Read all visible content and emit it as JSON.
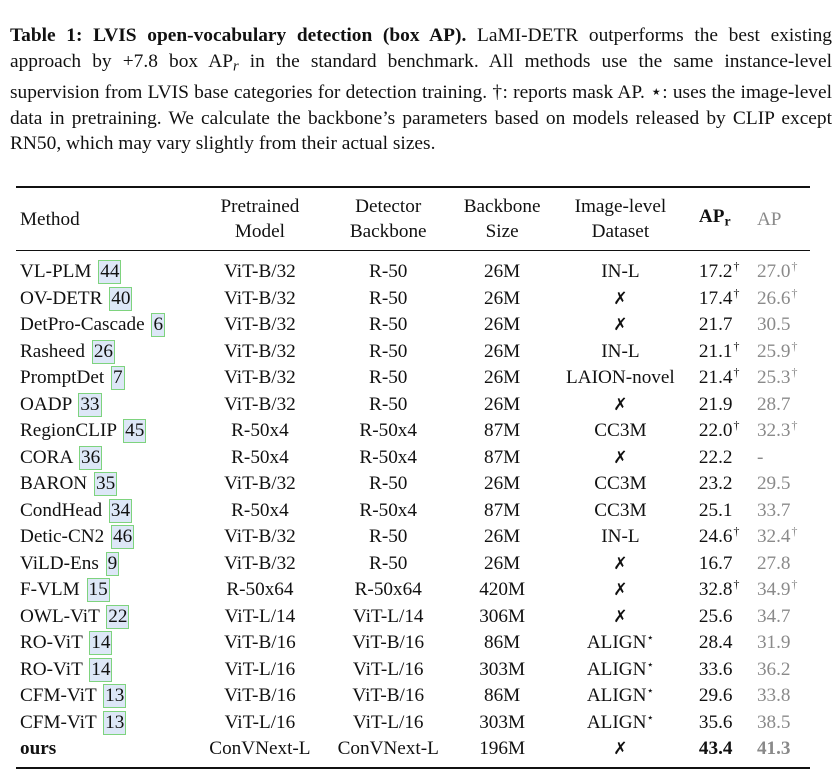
{
  "caption": {
    "label": "Table 1: LVIS open-vocabulary detection (box AP).",
    "text_part1": "LaMI-DETR outperforms the best existing approach by +7.8 box AP",
    "text_sub": "r",
    "text_part2": " in the standard benchmark. All methods use the same instance-level supervision from LVIS base categories for detection training. †: reports mask AP. ⋆: uses the image-level data in pretraining. We calculate the backbone’s parameters based on models released by CLIP except RN50, which may vary slightly from their actual sizes."
  },
  "table": {
    "headers": {
      "method": "Method",
      "pretrained_line1": "Pretrained",
      "pretrained_line2": "Model",
      "detector_line1": "Detector",
      "detector_line2": "Backbone",
      "size_line1": "Backbone",
      "size_line2": "Size",
      "dataset_line1": "Image-level",
      "dataset_line2": "Dataset",
      "apr_main": "AP",
      "apr_sub": "r",
      "ap": "AP"
    },
    "rows": [
      {
        "method": "VL-PLM",
        "ref": "44",
        "pretrained": "ViT-B/32",
        "detector": "R-50",
        "size": "26M",
        "dataset": "IN-L",
        "apr": "17.2",
        "apr_mark": "†",
        "ap": "27.0",
        "ap_mark": "†"
      },
      {
        "method": "OV-DETR",
        "ref": "40",
        "pretrained": "ViT-B/32",
        "detector": "R-50",
        "size": "26M",
        "dataset": "✗",
        "apr": "17.4",
        "apr_mark": "†",
        "ap": "26.6",
        "ap_mark": "†"
      },
      {
        "method": "DetPro-Cascade",
        "ref": "6",
        "pretrained": "ViT-B/32",
        "detector": "R-50",
        "size": "26M",
        "dataset": "✗",
        "apr": "21.7",
        "apr_mark": "",
        "ap": "30.5",
        "ap_mark": ""
      },
      {
        "method": "Rasheed",
        "ref": "26",
        "pretrained": "ViT-B/32",
        "detector": "R-50",
        "size": "26M",
        "dataset": "IN-L",
        "apr": "21.1",
        "apr_mark": "†",
        "ap": "25.9",
        "ap_mark": "†"
      },
      {
        "method": "PromptDet",
        "ref": "7",
        "pretrained": "ViT-B/32",
        "detector": "R-50",
        "size": "26M",
        "dataset": "LAION-novel",
        "apr": "21.4",
        "apr_mark": "†",
        "ap": "25.3",
        "ap_mark": "†"
      },
      {
        "method": "OADP",
        "ref": "33",
        "pretrained": "ViT-B/32",
        "detector": "R-50",
        "size": "26M",
        "dataset": "✗",
        "apr": "21.9",
        "apr_mark": "",
        "ap": "28.7",
        "ap_mark": ""
      },
      {
        "method": "RegionCLIP",
        "ref": "45",
        "pretrained": "R-50x4",
        "detector": "R-50x4",
        "size": "87M",
        "dataset": "CC3M",
        "apr": "22.0",
        "apr_mark": "†",
        "ap": "32.3",
        "ap_mark": "†"
      },
      {
        "method": "CORA",
        "ref": "36",
        "pretrained": "R-50x4",
        "detector": "R-50x4",
        "size": "87M",
        "dataset": "✗",
        "apr": "22.2",
        "apr_mark": "",
        "ap": "-",
        "ap_mark": ""
      },
      {
        "method": "BARON",
        "ref": "35",
        "pretrained": "ViT-B/32",
        "detector": "R-50",
        "size": "26M",
        "dataset": "CC3M",
        "apr": "23.2",
        "apr_mark": "",
        "ap": "29.5",
        "ap_mark": ""
      },
      {
        "method": "CondHead",
        "ref": "34",
        "pretrained": "R-50x4",
        "detector": "R-50x4",
        "size": "87M",
        "dataset": "CC3M",
        "apr": "25.1",
        "apr_mark": "",
        "ap": "33.7",
        "ap_mark": ""
      },
      {
        "method": "Detic-CN2",
        "ref": "46",
        "pretrained": "ViT-B/32",
        "detector": "R-50",
        "size": "26M",
        "dataset": "IN-L",
        "apr": "24.6",
        "apr_mark": "†",
        "ap": "32.4",
        "ap_mark": "†"
      },
      {
        "method": "ViLD-Ens",
        "ref": "9",
        "pretrained": "ViT-B/32",
        "detector": "R-50",
        "size": "26M",
        "dataset": "✗",
        "apr": "16.7",
        "apr_mark": "",
        "ap": "27.8",
        "ap_mark": ""
      },
      {
        "method": "F-VLM",
        "ref": "15",
        "pretrained": "R-50x64",
        "detector": "R-50x64",
        "size": "420M",
        "dataset": "✗",
        "apr": "32.8",
        "apr_mark": "†",
        "ap": "34.9",
        "ap_mark": "†"
      },
      {
        "method": "OWL-ViT",
        "ref": "22",
        "pretrained": "ViT-L/14",
        "detector": "ViT-L/14",
        "size": "306M",
        "dataset": "✗",
        "apr": "25.6",
        "apr_mark": "",
        "ap": "34.7",
        "ap_mark": ""
      },
      {
        "method": "RO-ViT",
        "ref": "14",
        "pretrained": "ViT-B/16",
        "detector": "ViT-B/16",
        "size": "86M",
        "dataset": "ALIGN",
        "dataset_star": "⋆",
        "apr": "28.4",
        "apr_mark": "",
        "ap": "31.9",
        "ap_mark": ""
      },
      {
        "method": "RO-ViT",
        "ref": "14",
        "pretrained": "ViT-L/16",
        "detector": "ViT-L/16",
        "size": "303M",
        "dataset": "ALIGN",
        "dataset_star": "⋆",
        "apr": "33.6",
        "apr_mark": "",
        "ap": "36.2",
        "ap_mark": ""
      },
      {
        "method": "CFM-ViT",
        "ref": "13",
        "pretrained": "ViT-B/16",
        "detector": "ViT-B/16",
        "size": "86M",
        "dataset": "ALIGN",
        "dataset_star": "⋆",
        "apr": "29.6",
        "apr_mark": "",
        "ap": "33.8",
        "ap_mark": ""
      },
      {
        "method": "CFM-ViT",
        "ref": "13",
        "pretrained": "ViT-L/16",
        "detector": "ViT-L/16",
        "size": "303M",
        "dataset": "ALIGN",
        "dataset_star": "⋆",
        "apr": "35.6",
        "apr_mark": "",
        "ap": "38.5",
        "ap_mark": ""
      },
      {
        "method": "ours",
        "ref": "",
        "pretrained": "ConVNext-L",
        "detector": "ConVNext-L",
        "size": "196M",
        "dataset": "✗",
        "apr": "43.4",
        "apr_mark": "",
        "ap": "41.3",
        "ap_mark": "",
        "bold": true
      }
    ]
  }
}
